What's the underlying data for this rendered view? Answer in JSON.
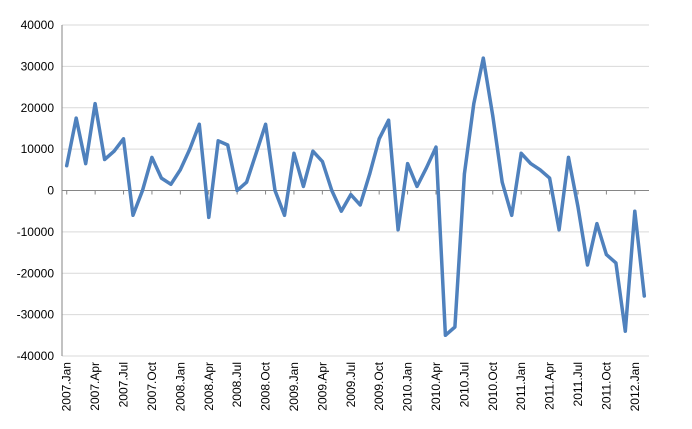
{
  "chart_data": {
    "type": "line",
    "title": "",
    "xlabel": "",
    "ylabel": "",
    "ylim": [
      -40000,
      40000
    ],
    "yticks": [
      "40000",
      "30000",
      "20000",
      "10000",
      "0",
      "-10000",
      "-20000",
      "-30000",
      "-40000"
    ],
    "grid": true,
    "legend": "none",
    "series_color": "#4f81bd",
    "x_tick_labels": [
      "2007.Jan",
      "2007.Apr",
      "2007.Jul",
      "2007.Oct",
      "2008.Jan",
      "2008.Apr",
      "2008.Jul",
      "2008.Oct",
      "2009.Jan",
      "2009.Apr",
      "2009.Jul",
      "2009.Oct",
      "2010.Jan",
      "2010.Apr",
      "2010.Jul",
      "2010.Oct",
      "2011.Jan",
      "2011.Apr",
      "2011.Jul",
      "2011.Oct",
      "2012.Jan"
    ],
    "x": [
      "2007.Jan",
      "2007.Feb",
      "2007.Mar",
      "2007.Apr",
      "2007.May",
      "2007.Jun",
      "2007.Jul",
      "2007.Aug",
      "2007.Sep",
      "2007.Oct",
      "2007.Nov",
      "2007.Dec",
      "2008.Jan",
      "2008.Feb",
      "2008.Mar",
      "2008.Apr",
      "2008.May",
      "2008.Jun",
      "2008.Jul",
      "2008.Aug",
      "2008.Sep",
      "2008.Oct",
      "2008.Nov",
      "2008.Dec",
      "2009.Jan",
      "2009.Feb",
      "2009.Mar",
      "2009.Apr",
      "2009.May",
      "2009.Jun",
      "2009.Jul",
      "2009.Aug",
      "2009.Sep",
      "2009.Oct",
      "2009.Nov",
      "2009.Dec",
      "2010.Jan",
      "2010.Feb",
      "2010.Mar",
      "2010.Apr",
      "2010.May",
      "2010.Jun",
      "2010.Jul",
      "2010.Aug",
      "2010.Sep",
      "2010.Oct",
      "2010.Nov",
      "2010.Dec",
      "2011.Jan",
      "2011.Feb",
      "2011.Mar",
      "2011.Apr",
      "2011.May",
      "2011.Jun",
      "2011.Jul",
      "2011.Aug",
      "2011.Sep",
      "2011.Oct",
      "2011.Nov",
      "2011.Dec",
      "2012.Jan",
      "2012.Feb"
    ],
    "values": [
      6000,
      17500,
      6500,
      21000,
      7500,
      9500,
      12500,
      -6000,
      0,
      8000,
      3000,
      1500,
      5000,
      10000,
      16000,
      -6500,
      12000,
      11000,
      0,
      2000,
      9000,
      16000,
      0,
      -6000,
      9000,
      1000,
      9500,
      7000,
      0,
      -5000,
      -1000,
      -3500,
      4000,
      12500,
      17000,
      -9500,
      6500,
      1000,
      5500,
      10500,
      -35000,
      -33000,
      4000,
      21000,
      32000,
      18000,
      2000,
      -6000,
      9000,
      6500,
      5000,
      3000,
      -9500,
      8000,
      -4000,
      -18000,
      -8000,
      -15500,
      -17500,
      -34000,
      -5000,
      -25500
    ]
  }
}
